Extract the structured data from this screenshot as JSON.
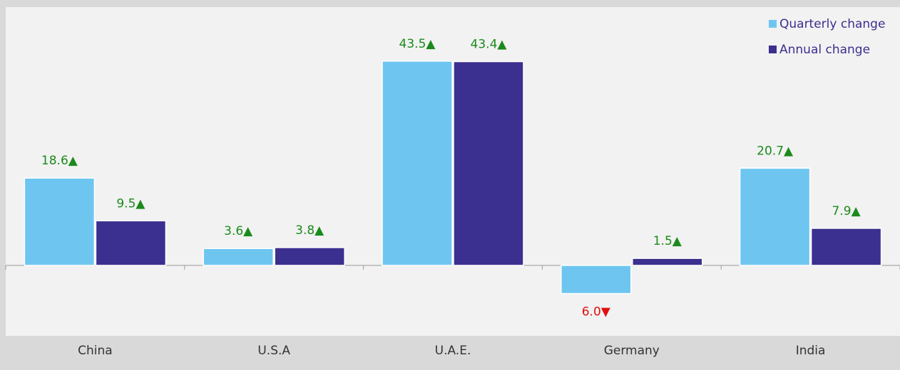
{
  "chart_data": {
    "type": "bar",
    "categories": [
      "China",
      "U.S.A",
      "U.A.E.",
      "Germany",
      "India"
    ],
    "series": [
      {
        "name": "Quarterly change",
        "color": "#6ec6f0",
        "values": [
          18.6,
          3.6,
          43.5,
          -6.0,
          20.7
        ],
        "value_labels": [
          "18.6▲",
          "3.6▲",
          "43.5▲",
          "6.0▼",
          "20.7▲"
        ]
      },
      {
        "name": "Annual change",
        "color": "#3b2f8f",
        "values": [
          9.5,
          3.8,
          43.4,
          1.5,
          7.9
        ],
        "value_labels": [
          "9.5▲",
          "3.8▲",
          "43.4▲",
          "1.5▲",
          "7.9▲"
        ]
      }
    ],
    "ylim": [
      -15,
      55
    ],
    "legend": "top-right"
  }
}
